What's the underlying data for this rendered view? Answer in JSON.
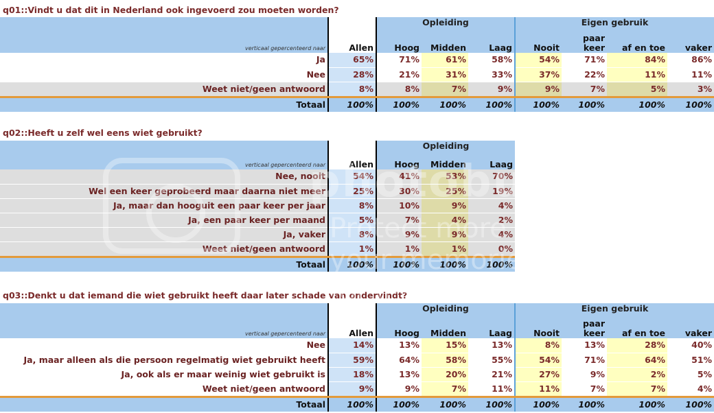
{
  "placeholder_text": "verticaal gepercenteerd naar",
  "q1": {
    "title": "q01::Vindt u dat dit in Nederland ook ingevoerd zou moeten worden?",
    "groups": {
      "opleiding": "Opleiding",
      "eigen": "Eigen gebruik"
    },
    "cols": [
      "Allen",
      "Hoog",
      "Midden",
      "Laag",
      "Nooit",
      "paar keer",
      "af en toe",
      "vaker"
    ],
    "rows": [
      {
        "label": "Ja",
        "values": [
          "65%",
          "71%",
          "61%",
          "58%",
          "54%",
          "71%",
          "84%",
          "86%"
        ]
      },
      {
        "label": "Nee",
        "values": [
          "28%",
          "21%",
          "31%",
          "33%",
          "37%",
          "22%",
          "11%",
          "11%"
        ]
      },
      {
        "label": "Weet niet/geen antwoord",
        "values": [
          "8%",
          "8%",
          "7%",
          "9%",
          "9%",
          "7%",
          "5%",
          "3%"
        ]
      }
    ],
    "total": {
      "label": "Totaal",
      "values": [
        "100%",
        "100%",
        "100%",
        "100%",
        "100%",
        "100%",
        "100%",
        "100%"
      ]
    }
  },
  "q2": {
    "title": "q02::Heeft u zelf wel eens wiet gebruikt?",
    "groups": {
      "opleiding": "Opleiding"
    },
    "cols": [
      "Allen",
      "Hoog",
      "Midden",
      "Laag"
    ],
    "rows": [
      {
        "label": "Nee, nooit",
        "values": [
          "54%",
          "41%",
          "53%",
          "70%"
        ]
      },
      {
        "label": "Wel een keer geprobeerd maar daarna niet meer",
        "values": [
          "25%",
          "30%",
          "25%",
          "19%"
        ]
      },
      {
        "label": "Ja, maar dan hooguit een paar keer per jaar",
        "values": [
          "8%",
          "10%",
          "9%",
          "4%"
        ]
      },
      {
        "label": "Ja, een paar keer per maand",
        "values": [
          "5%",
          "7%",
          "4%",
          "2%"
        ]
      },
      {
        "label": "Ja, vaker",
        "values": [
          "8%",
          "9%",
          "9%",
          "4%"
        ]
      },
      {
        "label": "Weet niet/geen antwoord",
        "values": [
          "1%",
          "1%",
          "1%",
          "0%"
        ]
      }
    ],
    "total": {
      "label": "Totaal",
      "values": [
        "100%",
        "100%",
        "100%",
        "100%"
      ]
    }
  },
  "q3": {
    "title": "q03::Denkt u dat iemand die wiet gebruikt heeft daar later schade van ondervindt?",
    "groups": {
      "opleiding": "Opleiding",
      "eigen": "Eigen gebruik"
    },
    "cols": [
      "Allen",
      "Hoog",
      "Midden",
      "Laag",
      "Nooit",
      "paar keer",
      "af en toe",
      "vaker"
    ],
    "rows": [
      {
        "label": "Nee",
        "values": [
          "14%",
          "13%",
          "15%",
          "13%",
          "8%",
          "13%",
          "28%",
          "40%"
        ]
      },
      {
        "label": "Ja, maar alleen als die persoon regelmatig wiet gebruikt heeft",
        "values": [
          "59%",
          "64%",
          "58%",
          "55%",
          "54%",
          "71%",
          "64%",
          "51%"
        ]
      },
      {
        "label": "Ja, ook als er maar weinig wiet gebruikt is",
        "values": [
          "18%",
          "13%",
          "20%",
          "21%",
          "27%",
          "9%",
          "2%",
          "5%"
        ]
      },
      {
        "label": "Weet niet/geen antwoord",
        "values": [
          "9%",
          "9%",
          "7%",
          "11%",
          "11%",
          "7%",
          "7%",
          "4%"
        ]
      }
    ],
    "total": {
      "label": "Totaal",
      "values": [
        "100%",
        "100%",
        "100%",
        "100%",
        "100%",
        "100%",
        "100%",
        "100%"
      ]
    }
  },
  "watermark": {
    "line1": "photobucket",
    "line2": "Protect more of your memories for less!"
  }
}
